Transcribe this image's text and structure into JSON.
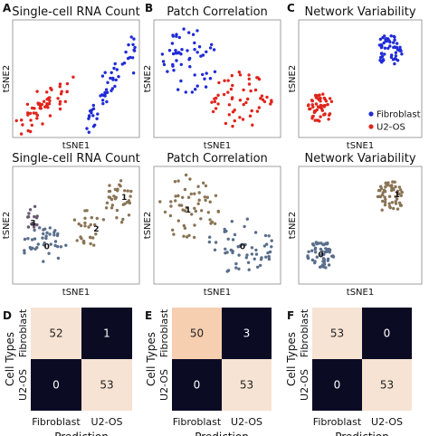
{
  "panel_letters": [
    "A",
    "B",
    "C",
    "D",
    "E",
    "F"
  ],
  "legend": {
    "entries": [
      {
        "label": "Fibroblast",
        "color": "#1f2bd6"
      },
      {
        "label": "U2-OS",
        "color": "#e0241b"
      }
    ]
  },
  "cluster_colors": {
    "0": "#5a6e8c",
    "1": "#8a7456",
    "2": "#8a7456",
    "3": "#6a5a70"
  },
  "cm_colors": {
    "low": "#0b0b24",
    "mid": "#f7e3d3",
    "high": "#f6cfb0"
  },
  "chart_data": [
    {
      "type": "scatter",
      "title": "Single-cell RNA Count",
      "xlabel": "tSNE1",
      "ylabel": "tSNE2",
      "coloring": "cell_type",
      "groups": [
        {
          "name": "Fibroblast",
          "color": "#1f2bd6",
          "shape": "band",
          "x": [
            55,
            96
          ],
          "y": [
            18,
            94
          ],
          "n": 55,
          "spread": 5
        },
        {
          "name": "U2-OS",
          "color": "#e0241b",
          "shape": "band",
          "x": [
            8,
            40
          ],
          "y": [
            62,
            86
          ],
          "n": 55,
          "spread": 7
        }
      ]
    },
    {
      "type": "scatter",
      "title": "Patch Correlation",
      "xlabel": "tSNE1",
      "ylabel": "tSNE2",
      "coloring": "cell_type",
      "groups": [
        {
          "name": "Fibroblast",
          "color": "#1f2bd6",
          "shape": "blob",
          "cx": 28,
          "cy": 35,
          "rx": 22,
          "ry": 28,
          "n": 55
        },
        {
          "name": "U2-OS",
          "color": "#e0241b",
          "shape": "blob",
          "cx": 68,
          "cy": 68,
          "rx": 26,
          "ry": 24,
          "n": 55
        }
      ]
    },
    {
      "type": "scatter",
      "title": "Network Variability",
      "xlabel": "tSNE1",
      "ylabel": "tSNE2",
      "coloring": "cell_type",
      "legend_position": "bottom-right",
      "groups": [
        {
          "name": "Fibroblast",
          "color": "#1f2bd6",
          "shape": "blob",
          "cx": 74,
          "cy": 26,
          "rx": 11,
          "ry": 14,
          "n": 55
        },
        {
          "name": "U2-OS",
          "color": "#e0241b",
          "shape": "blob",
          "cx": 18,
          "cy": 75,
          "rx": 11,
          "ry": 12,
          "n": 55
        }
      ]
    },
    {
      "type": "scatter",
      "title": "Single-cell RNA Count",
      "xlabel": "tSNE1",
      "ylabel": "tSNE2",
      "coloring": "cluster",
      "groups": [
        {
          "name": "0",
          "color": "#5a6e8c",
          "shape": "blob",
          "cx": 25,
          "cy": 67,
          "rx": 18,
          "ry": 16,
          "n": 40
        },
        {
          "name": "3",
          "color": "#6a5a70",
          "shape": "blob",
          "cx": 14,
          "cy": 42,
          "rx": 7,
          "ry": 12,
          "n": 14
        },
        {
          "name": "2",
          "color": "#8a7456",
          "shape": "blob",
          "cx": 60,
          "cy": 52,
          "rx": 14,
          "ry": 16,
          "n": 26
        },
        {
          "name": "1",
          "color": "#8a7456",
          "shape": "blob",
          "cx": 84,
          "cy": 30,
          "rx": 11,
          "ry": 20,
          "n": 34
        }
      ],
      "cluster_labels": [
        {
          "text": "0",
          "x": 27,
          "y": 68
        },
        {
          "text": "3",
          "x": 16,
          "y": 48
        },
        {
          "text": "2",
          "x": 66,
          "y": 53
        },
        {
          "text": "1",
          "x": 88,
          "y": 26
        }
      ]
    },
    {
      "type": "scatter",
      "title": "Patch Correlation",
      "xlabel": "tSNE1",
      "ylabel": "tSNE2",
      "coloring": "cluster",
      "groups": [
        {
          "name": "1",
          "color": "#8a7456",
          "shape": "blob",
          "cx": 28,
          "cy": 35,
          "rx": 24,
          "ry": 28,
          "n": 55
        },
        {
          "name": "0",
          "color": "#5a6e8c",
          "shape": "blob",
          "cx": 68,
          "cy": 68,
          "rx": 26,
          "ry": 24,
          "n": 55
        }
      ],
      "cluster_labels": [
        {
          "text": "1",
          "x": 27,
          "y": 37
        },
        {
          "text": "0",
          "x": 70,
          "y": 68
        }
      ]
    },
    {
      "type": "scatter",
      "title": "Network Variability",
      "xlabel": "tSNE1",
      "ylabel": "tSNE2",
      "coloring": "cluster",
      "groups": [
        {
          "name": "1",
          "color": "#8a7456",
          "shape": "blob",
          "cx": 74,
          "cy": 26,
          "rx": 11,
          "ry": 14,
          "n": 55
        },
        {
          "name": "0",
          "color": "#5a6e8c",
          "shape": "blob",
          "cx": 18,
          "cy": 75,
          "rx": 11,
          "ry": 12,
          "n": 55
        }
      ],
      "cluster_labels": [
        {
          "text": "1",
          "x": 80,
          "y": 24
        },
        {
          "text": "0",
          "x": 18,
          "y": 75
        }
      ]
    },
    {
      "type": "heatmap",
      "ylabel": "Cell Types",
      "xlabel": "Prediction",
      "rows": [
        "Fibroblast",
        "U2-OS"
      ],
      "cols": [
        "Fibroblast",
        "U2-OS"
      ],
      "values": [
        [
          52,
          1
        ],
        [
          0,
          53
        ]
      ]
    },
    {
      "type": "heatmap",
      "ylabel": "Cell Types",
      "xlabel": "Prediction",
      "rows": [
        "Fibroblast",
        "U2-OS"
      ],
      "cols": [
        "Fibroblast",
        "U2-OS"
      ],
      "values": [
        [
          50,
          3
        ],
        [
          0,
          53
        ]
      ]
    },
    {
      "type": "heatmap",
      "ylabel": "Cell Types",
      "xlabel": "Prediction",
      "rows": [
        "Fibroblast",
        "U2-OS"
      ],
      "cols": [
        "Fibroblast",
        "U2-OS"
      ],
      "values": [
        [
          53,
          0
        ],
        [
          0,
          53
        ]
      ]
    }
  ]
}
